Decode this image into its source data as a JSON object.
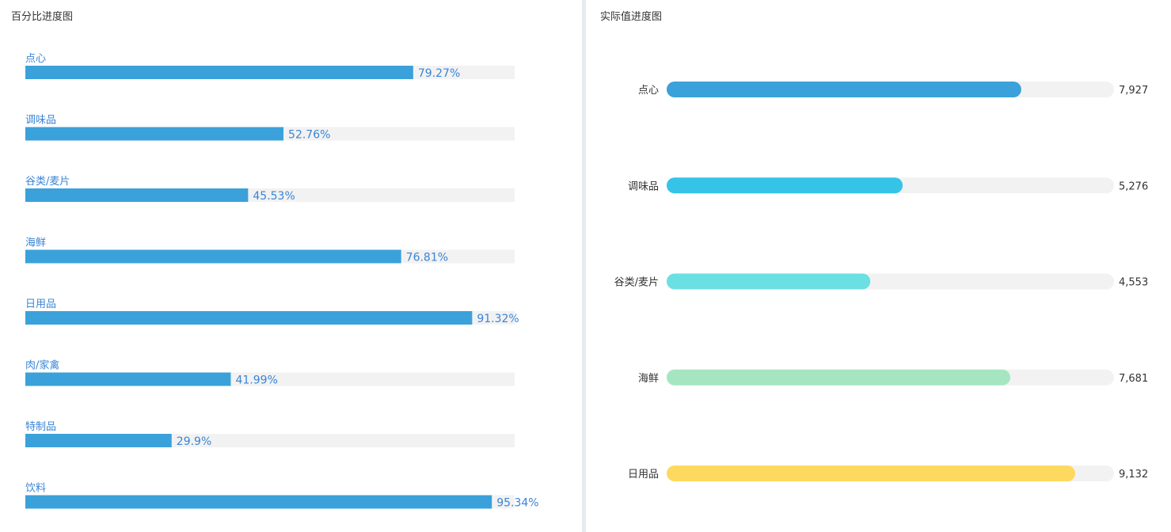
{
  "chart_data": [
    {
      "type": "bar",
      "title": "百分比进度图",
      "orientation": "horizontal",
      "categories": [
        "点心",
        "调味品",
        "谷类/麦片",
        "海鲜",
        "日用品",
        "肉/家禽",
        "特制品",
        "饮料"
      ],
      "values": [
        79.27,
        52.76,
        45.53,
        76.81,
        91.32,
        41.99,
        29.9,
        95.34
      ],
      "value_labels": [
        "79.27%",
        "52.76%",
        "45.53%",
        "76.81%",
        "91.32%",
        "41.99%",
        "29.9%",
        "95.34%"
      ],
      "unit": "%",
      "xlim": [
        0,
        100
      ],
      "bar_color": "#3ba1da",
      "track_color": "#f2f2f2",
      "label_color": "#3a85d6",
      "grid": false
    },
    {
      "type": "bar",
      "title": "实际值进度图",
      "orientation": "horizontal",
      "categories": [
        "点心",
        "调味品",
        "谷类/麦片",
        "海鲜",
        "日用品"
      ],
      "values": [
        7927,
        5276,
        4553,
        7681,
        9132
      ],
      "value_labels": [
        "7,927",
        "5,276",
        "4,553",
        "7,681",
        "9,132"
      ],
      "xlim": [
        0,
        10000
      ],
      "colors": [
        "#3ba1da",
        "#35c4e8",
        "#6be0e3",
        "#a5e6c1",
        "#fdd960"
      ],
      "track_color": "#f2f2f2",
      "label_color": "#333333",
      "grid": false
    }
  ]
}
